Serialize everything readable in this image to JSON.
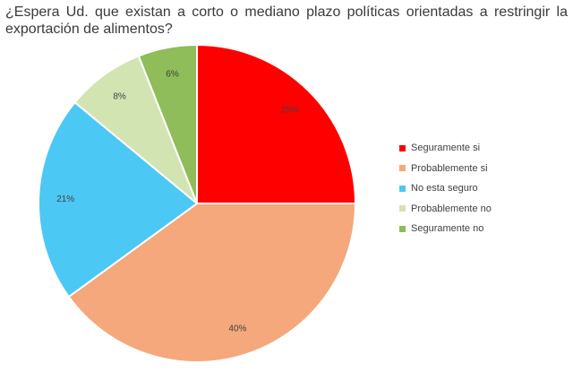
{
  "question": "¿Espera Ud. que existan a corto o mediano plazo políticas orientadas a restringir la exportación de alimentos?",
  "chart_data": {
    "type": "pie",
    "title": "¿Espera Ud. que existan a corto o mediano plazo políticas orientadas a restringir la exportación de alimentos?",
    "categories": [
      "Seguramente si",
      "Probablemente si",
      "No esta seguro",
      "Probablemente no",
      "Seguramente no"
    ],
    "values": [
      25,
      40,
      21,
      8,
      6
    ],
    "labels": [
      "25%",
      "40%",
      "21%",
      "8%",
      "6%"
    ],
    "colors": [
      "#ff0000",
      "#f4a87c",
      "#4cc8f4",
      "#d3e4b3",
      "#8ebd59"
    ],
    "legend_position": "right"
  }
}
